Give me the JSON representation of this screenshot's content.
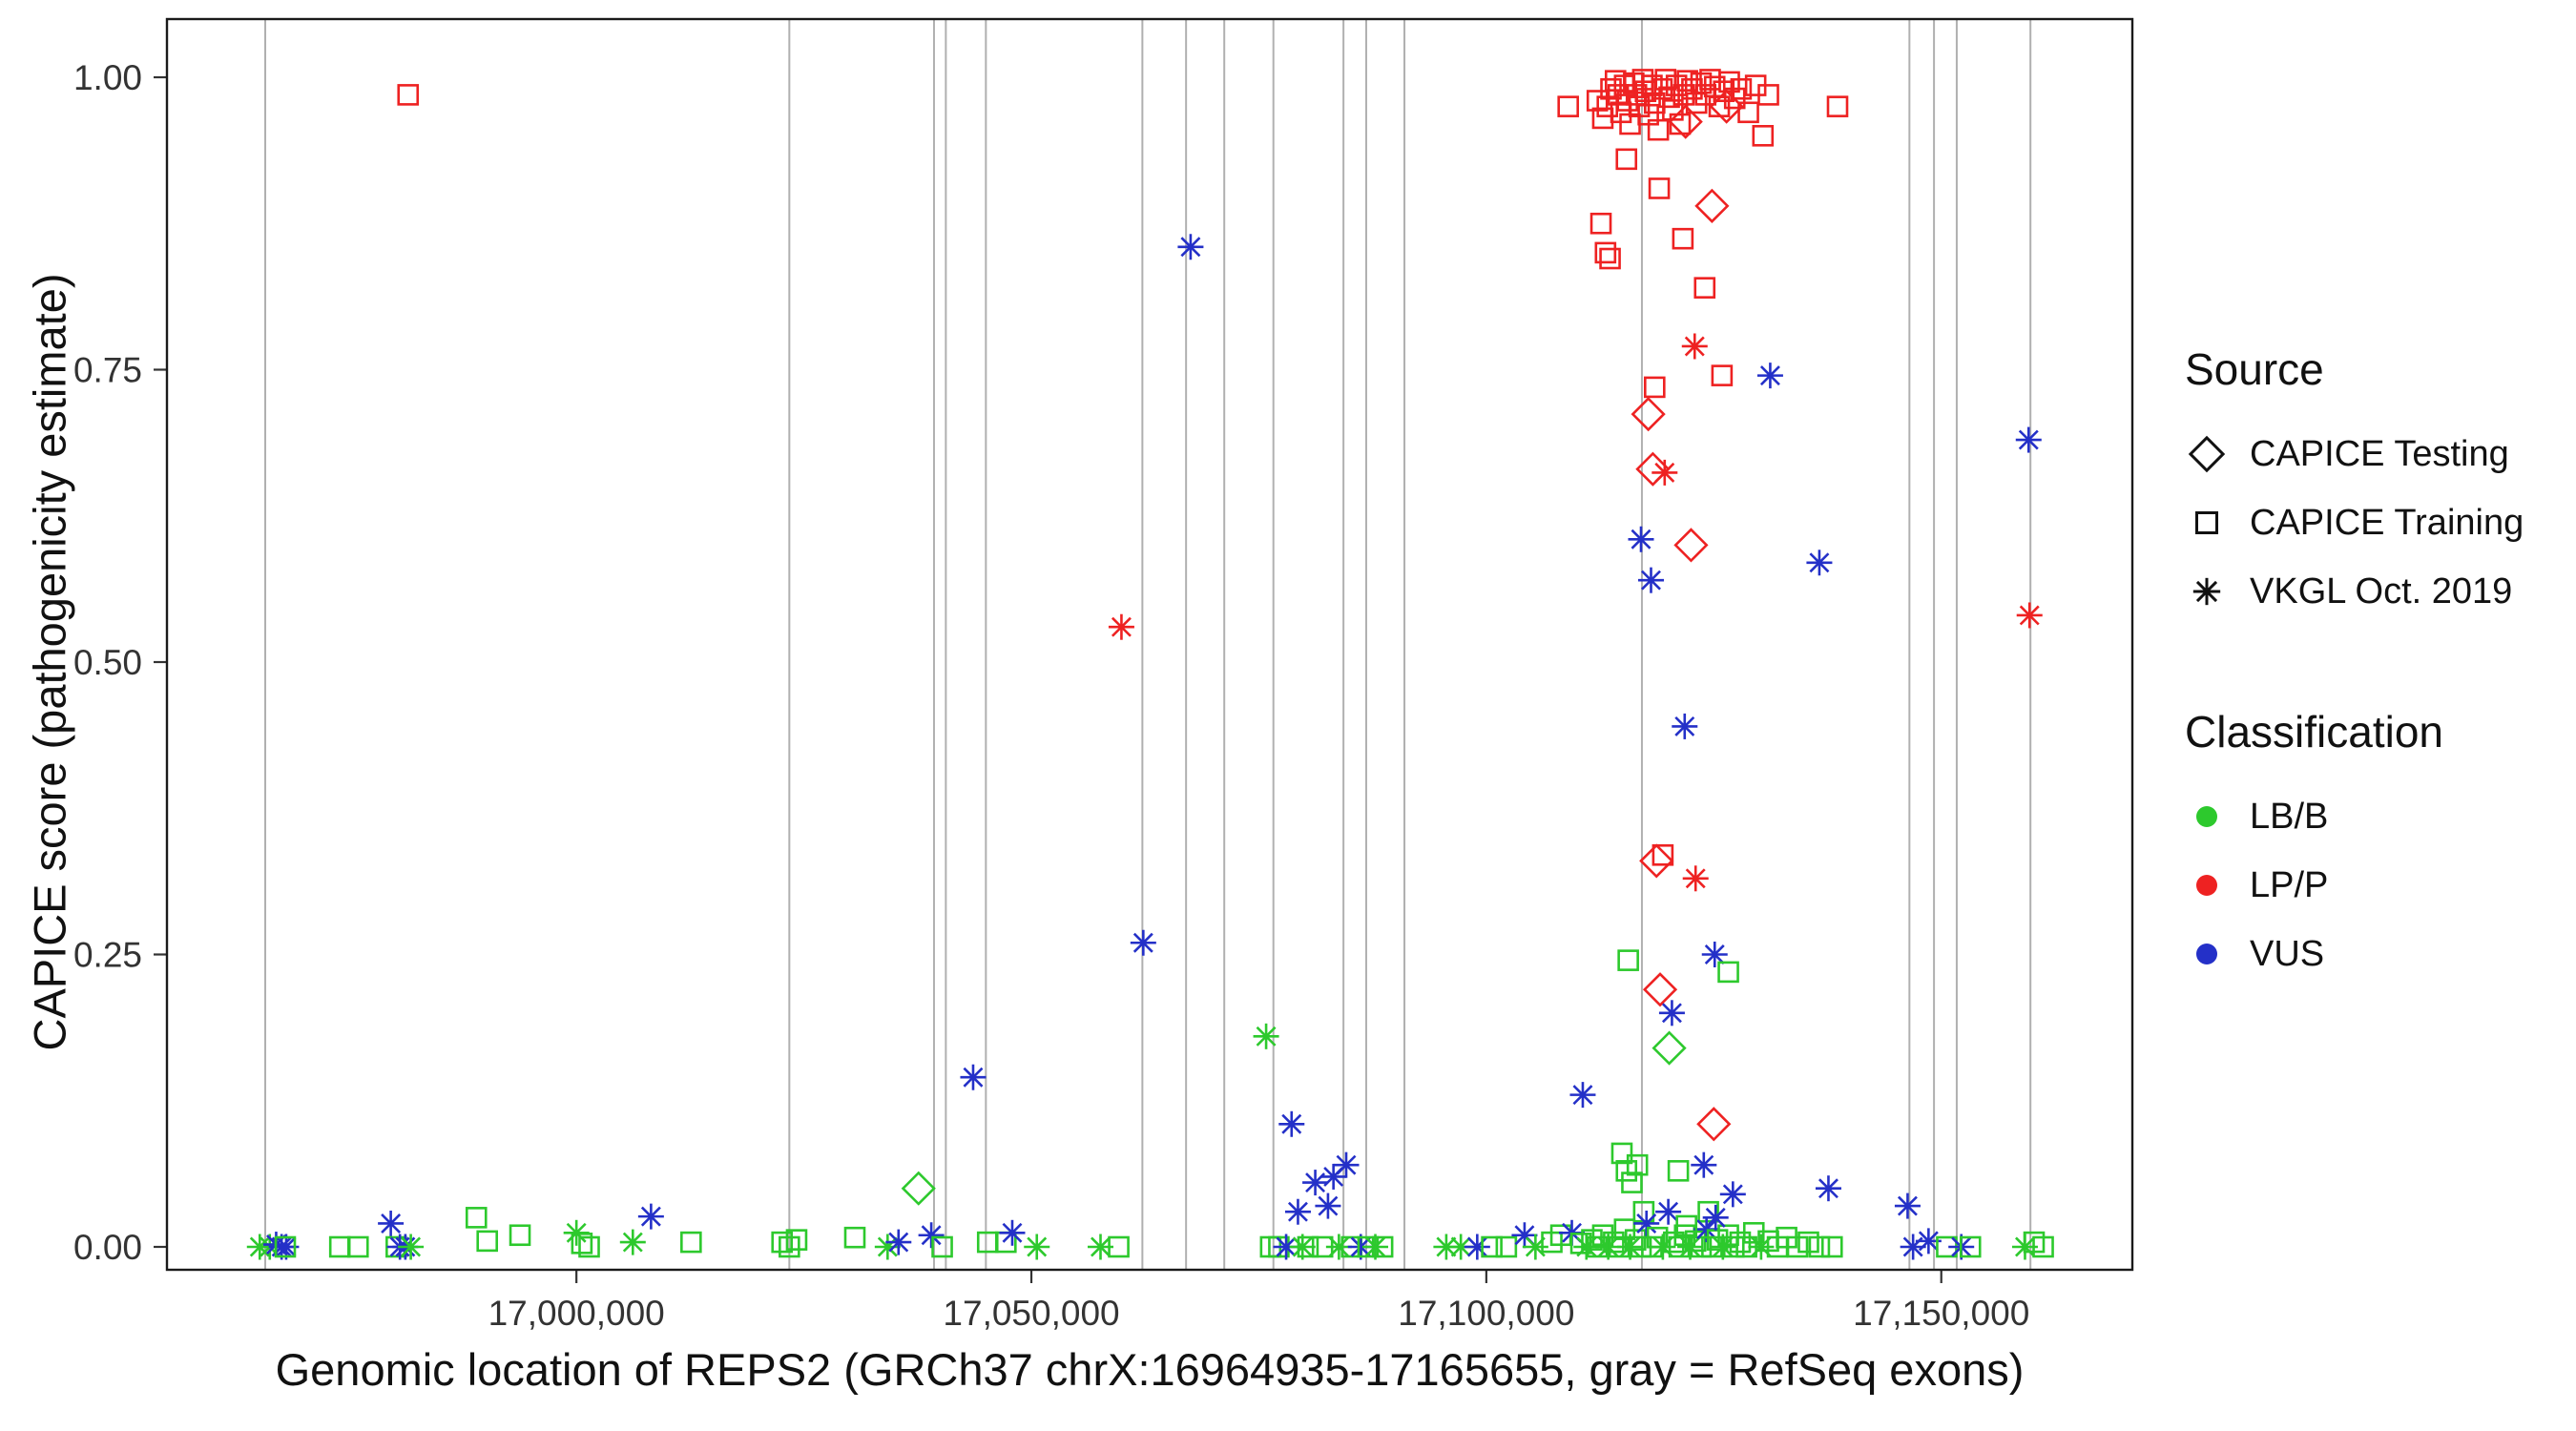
{
  "figure": {
    "x_axis_title": "Genomic location of REPS2 (GRCh37 chrX:16964935-17165655, gray = RefSeq exons)",
    "y_axis_title": "CAPICE score (pathogenicity estimate)"
  },
  "legend": {
    "source_title": "Source",
    "source_items": [
      {
        "label": "CAPICE Testing",
        "shape": "d"
      },
      {
        "label": "CAPICE Training",
        "shape": "s"
      },
      {
        "label": "VKGL Oct. 2019",
        "shape": "a"
      }
    ],
    "classification_title": "Classification",
    "classification_items": [
      {
        "label": "LB/B",
        "code": "B"
      },
      {
        "label": "LP/P",
        "code": "P"
      },
      {
        "label": "VUS",
        "code": "V"
      }
    ]
  },
  "chart_data": {
    "type": "scatter",
    "title": "",
    "xlabel": "Genomic location of REPS2 (GRCh37 chrX:16964935-17165655, gray = RefSeq exons)",
    "ylabel": "CAPICE score (pathogenicity estimate)",
    "xlim": [
      16955000,
      17171000
    ],
    "ylim": [
      0,
      1
    ],
    "grid": "off",
    "legend_position": "right",
    "x_ticks": [
      {
        "value": 17000000,
        "label": "17,000,000"
      },
      {
        "value": 17050000,
        "label": "17,050,000"
      },
      {
        "value": 17100000,
        "label": "17,100,000"
      },
      {
        "value": 17150000,
        "label": "17,150,000"
      }
    ],
    "y_ticks": [
      {
        "value": 0.0,
        "label": "0.00"
      },
      {
        "value": 0.25,
        "label": "0.25"
      },
      {
        "value": 0.5,
        "label": "0.50"
      },
      {
        "value": 0.75,
        "label": "0.75"
      },
      {
        "value": 1.0,
        "label": "1.00"
      }
    ],
    "exon_line_color": "#B0B0B0",
    "exon_lines": [
      16965800,
      17023400,
      17039300,
      17040600,
      17045000,
      17062200,
      17067000,
      17071200,
      17076600,
      17084300,
      17086800,
      17091000,
      17117100,
      17146500,
      17149200,
      17151700,
      17159800
    ],
    "colors": {
      "B": "#2DC92D",
      "P": "#EE2222",
      "V": "#2430C8"
    },
    "codes": {
      "class": {
        "B": "LB/B",
        "P": "LP/P",
        "V": "VUS"
      },
      "shape": {
        "d": "CAPICE Testing (diamond)",
        "s": "CAPICE Training (square)",
        "a": "VKGL Oct. 2019 (asterisk)"
      }
    },
    "points": [
      [
        16965200,
        0.0,
        "B",
        "a"
      ],
      [
        16966300,
        0.0,
        "B",
        "a"
      ],
      [
        16967000,
        0.002,
        "V",
        "a"
      ],
      [
        16967600,
        0.0,
        "V",
        "a"
      ],
      [
        16968100,
        0.0,
        "V",
        "a"
      ],
      [
        16968000,
        0.0,
        "B",
        "s"
      ],
      [
        16974000,
        0.0,
        "B",
        "s"
      ],
      [
        16976000,
        0.0,
        "B",
        "s"
      ],
      [
        16979600,
        0.02,
        "V",
        "a"
      ],
      [
        16980200,
        0.0,
        "B",
        "s"
      ],
      [
        16980600,
        0.0,
        "V",
        "a"
      ],
      [
        16981200,
        0.0,
        "V",
        "a"
      ],
      [
        16981800,
        0.0,
        "B",
        "a"
      ],
      [
        16981500,
        0.985,
        "P",
        "s"
      ],
      [
        16989000,
        0.025,
        "B",
        "s"
      ],
      [
        16990200,
        0.005,
        "B",
        "s"
      ],
      [
        16993800,
        0.01,
        "B",
        "s"
      ],
      [
        17000000,
        0.012,
        "B",
        "a"
      ],
      [
        17000600,
        0.003,
        "B",
        "s"
      ],
      [
        17001400,
        0.0,
        "B",
        "s"
      ],
      [
        17006200,
        0.004,
        "B",
        "a"
      ],
      [
        17008200,
        0.026,
        "V",
        "a"
      ],
      [
        17012600,
        0.004,
        "B",
        "s"
      ],
      [
        17022600,
        0.004,
        "B",
        "s"
      ],
      [
        17023400,
        0.0,
        "B",
        "s"
      ],
      [
        17024200,
        0.006,
        "B",
        "s"
      ],
      [
        17030600,
        0.008,
        "B",
        "s"
      ],
      [
        17034200,
        0.0,
        "B",
        "a"
      ],
      [
        17035400,
        0.004,
        "V",
        "a"
      ],
      [
        17037600,
        0.05,
        "B",
        "d"
      ],
      [
        17039000,
        0.01,
        "V",
        "a"
      ],
      [
        17040200,
        0.0,
        "B",
        "s"
      ],
      [
        17043600,
        0.145,
        "V",
        "a"
      ],
      [
        17045200,
        0.004,
        "B",
        "s"
      ],
      [
        17047200,
        0.004,
        "B",
        "s"
      ],
      [
        17047900,
        0.012,
        "V",
        "a"
      ],
      [
        17050600,
        0.0,
        "B",
        "a"
      ],
      [
        17057600,
        0.0,
        "B",
        "a"
      ],
      [
        17059600,
        0.0,
        "B",
        "s"
      ],
      [
        17059900,
        0.53,
        "P",
        "a"
      ],
      [
        17062300,
        0.26,
        "V",
        "a"
      ],
      [
        17067500,
        0.855,
        "V",
        "a"
      ],
      [
        17075800,
        0.18,
        "B",
        "a"
      ],
      [
        17076300,
        0.0,
        "B",
        "s"
      ],
      [
        17077200,
        0.0,
        "B",
        "s"
      ],
      [
        17078000,
        0.0,
        "V",
        "a"
      ],
      [
        17078600,
        0.105,
        "V",
        "a"
      ],
      [
        17079300,
        0.03,
        "V",
        "a"
      ],
      [
        17079800,
        0.0,
        "B",
        "a"
      ],
      [
        17080400,
        0.0,
        "B",
        "s"
      ],
      [
        17081200,
        0.055,
        "V",
        "a"
      ],
      [
        17082000,
        0.0,
        "B",
        "s"
      ],
      [
        17082600,
        0.035,
        "V",
        "a"
      ],
      [
        17083200,
        0.06,
        "V",
        "a"
      ],
      [
        17083800,
        0.0,
        "B",
        "a"
      ],
      [
        17084600,
        0.07,
        "V",
        "a"
      ],
      [
        17085200,
        0.0,
        "B",
        "s"
      ],
      [
        17086200,
        0.0,
        "V",
        "a"
      ],
      [
        17087000,
        0.0,
        "B",
        "s"
      ],
      [
        17087800,
        0.0,
        "B",
        "a"
      ],
      [
        17088600,
        0.0,
        "B",
        "s"
      ],
      [
        17095600,
        0.0,
        "B",
        "a"
      ],
      [
        17097200,
        0.0,
        "B",
        "a"
      ],
      [
        17099000,
        0.0,
        "V",
        "a"
      ],
      [
        17100600,
        0.0,
        "B",
        "s"
      ],
      [
        17102200,
        0.0,
        "B",
        "s"
      ],
      [
        17104200,
        0.01,
        "V",
        "a"
      ],
      [
        17105400,
        0.0,
        "B",
        "a"
      ],
      [
        17107200,
        0.004,
        "B",
        "s"
      ],
      [
        17108200,
        0.01,
        "B",
        "s"
      ],
      [
        17109400,
        0.012,
        "V",
        "a"
      ],
      [
        17110600,
        0.13,
        "V",
        "a"
      ],
      [
        17109000,
        0.975,
        "P",
        "s"
      ],
      [
        17112200,
        0.98,
        "P",
        "s"
      ],
      [
        17112800,
        0.965,
        "P",
        "s"
      ],
      [
        17113300,
        0.975,
        "P",
        "s"
      ],
      [
        17113700,
        0.99,
        "P",
        "s"
      ],
      [
        17114200,
        0.997,
        "P",
        "s"
      ],
      [
        17114500,
        0.985,
        "P",
        "s"
      ],
      [
        17114800,
        0.97,
        "P",
        "s"
      ],
      [
        17115200,
        0.993,
        "P",
        "s"
      ],
      [
        17115500,
        0.98,
        "P",
        "s"
      ],
      [
        17115800,
        0.96,
        "P",
        "s"
      ],
      [
        17116200,
        0.995,
        "P",
        "s"
      ],
      [
        17116500,
        0.985,
        "P",
        "s"
      ],
      [
        17116800,
        0.975,
        "P",
        "s"
      ],
      [
        17117200,
        0.998,
        "P",
        "s"
      ],
      [
        17117500,
        0.988,
        "P",
        "s"
      ],
      [
        17117800,
        0.968,
        "P",
        "s"
      ],
      [
        17118200,
        0.993,
        "P",
        "s"
      ],
      [
        17118500,
        0.978,
        "P",
        "s"
      ],
      [
        17118900,
        0.955,
        "P",
        "s"
      ],
      [
        17119300,
        0.99,
        "P",
        "s"
      ],
      [
        17119700,
        0.998,
        "P",
        "s"
      ],
      [
        17120100,
        0.983,
        "P",
        "s"
      ],
      [
        17120500,
        0.972,
        "P",
        "s"
      ],
      [
        17120900,
        0.993,
        "P",
        "s"
      ],
      [
        17121300,
        0.96,
        "P",
        "s"
      ],
      [
        17121700,
        0.985,
        "P",
        "s"
      ],
      [
        17122100,
        0.997,
        "P",
        "s"
      ],
      [
        17122600,
        0.99,
        "P",
        "s"
      ],
      [
        17123100,
        0.978,
        "P",
        "s"
      ],
      [
        17123600,
        0.995,
        "P",
        "s"
      ],
      [
        17124100,
        0.985,
        "P",
        "s"
      ],
      [
        17124600,
        0.998,
        "P",
        "s"
      ],
      [
        17125100,
        0.992,
        "P",
        "s"
      ],
      [
        17125600,
        0.975,
        "P",
        "s"
      ],
      [
        17126100,
        0.988,
        "P",
        "s"
      ],
      [
        17126700,
        0.996,
        "P",
        "s"
      ],
      [
        17127300,
        0.982,
        "P",
        "s"
      ],
      [
        17128000,
        0.99,
        "P",
        "s"
      ],
      [
        17128800,
        0.97,
        "P",
        "s"
      ],
      [
        17129600,
        0.993,
        "P",
        "s"
      ],
      [
        17130400,
        0.95,
        "P",
        "s"
      ],
      [
        17131000,
        0.985,
        "P",
        "s"
      ],
      [
        17121900,
        0.962,
        "P",
        "d"
      ],
      [
        17126400,
        0.975,
        "P",
        "d"
      ],
      [
        17112600,
        0.875,
        "P",
        "s"
      ],
      [
        17113100,
        0.85,
        "P",
        "s"
      ],
      [
        17113600,
        0.845,
        "P",
        "s"
      ],
      [
        17119000,
        0.905,
        "P",
        "s"
      ],
      [
        17121600,
        0.862,
        "P",
        "s"
      ],
      [
        17115400,
        0.93,
        "P",
        "s"
      ],
      [
        17124800,
        0.89,
        "P",
        "d"
      ],
      [
        17124000,
        0.82,
        "P",
        "s"
      ],
      [
        17122900,
        0.77,
        "P",
        "a"
      ],
      [
        17118500,
        0.735,
        "P",
        "s"
      ],
      [
        17125900,
        0.745,
        "P",
        "s"
      ],
      [
        17117800,
        0.712,
        "P",
        "d"
      ],
      [
        17118300,
        0.665,
        "P",
        "d"
      ],
      [
        17119600,
        0.662,
        "P",
        "a"
      ],
      [
        17122500,
        0.6,
        "P",
        "d"
      ],
      [
        17118700,
        0.33,
        "P",
        "d"
      ],
      [
        17119400,
        0.335,
        "P",
        "s"
      ],
      [
        17123000,
        0.315,
        "P",
        "a"
      ],
      [
        17119100,
        0.22,
        "P",
        "d"
      ],
      [
        17125000,
        0.105,
        "P",
        "d"
      ],
      [
        17117000,
        0.605,
        "V",
        "a"
      ],
      [
        17118100,
        0.57,
        "V",
        "a"
      ],
      [
        17121800,
        0.445,
        "V",
        "a"
      ],
      [
        17120400,
        0.2,
        "V",
        "a"
      ],
      [
        17125100,
        0.25,
        "V",
        "a"
      ],
      [
        17123900,
        0.07,
        "V",
        "a"
      ],
      [
        17127100,
        0.045,
        "V",
        "a"
      ],
      [
        17131200,
        0.745,
        "V",
        "a"
      ],
      [
        17136600,
        0.585,
        "V",
        "a"
      ],
      [
        17137600,
        0.05,
        "V",
        "a"
      ],
      [
        17115600,
        0.245,
        "B",
        "s"
      ],
      [
        17126600,
        0.235,
        "B",
        "s"
      ],
      [
        17120100,
        0.17,
        "B",
        "d"
      ],
      [
        17114900,
        0.08,
        "B",
        "s"
      ],
      [
        17115400,
        0.065,
        "B",
        "s"
      ],
      [
        17116000,
        0.055,
        "B",
        "s"
      ],
      [
        17116600,
        0.07,
        "B",
        "s"
      ],
      [
        17117300,
        0.03,
        "B",
        "s"
      ],
      [
        17121100,
        0.065,
        "B",
        "s"
      ],
      [
        17124400,
        0.03,
        "B",
        "s"
      ],
      [
        17110400,
        0.003,
        "B",
        "s"
      ],
      [
        17111000,
        0.0,
        "B",
        "a"
      ],
      [
        17111600,
        0.006,
        "B",
        "s"
      ],
      [
        17112200,
        0.0,
        "B",
        "s"
      ],
      [
        17112800,
        0.01,
        "B",
        "s"
      ],
      [
        17113400,
        0.0,
        "B",
        "a"
      ],
      [
        17114000,
        0.004,
        "B",
        "s"
      ],
      [
        17114600,
        0.0,
        "B",
        "s"
      ],
      [
        17115200,
        0.015,
        "B",
        "s"
      ],
      [
        17115800,
        0.0,
        "B",
        "a"
      ],
      [
        17116400,
        0.006,
        "B",
        "s"
      ],
      [
        17117000,
        0.0,
        "B",
        "s"
      ],
      [
        17117600,
        0.02,
        "V",
        "a"
      ],
      [
        17118200,
        0.0,
        "B",
        "s"
      ],
      [
        17118800,
        0.008,
        "B",
        "s"
      ],
      [
        17119400,
        0.0,
        "B",
        "a"
      ],
      [
        17120000,
        0.03,
        "V",
        "a"
      ],
      [
        17120600,
        0.004,
        "B",
        "s"
      ],
      [
        17121200,
        0.0,
        "B",
        "s"
      ],
      [
        17121800,
        0.01,
        "B",
        "s"
      ],
      [
        17122400,
        0.0,
        "B",
        "a"
      ],
      [
        17123000,
        0.005,
        "B",
        "s"
      ],
      [
        17123600,
        0.0,
        "B",
        "s"
      ],
      [
        17124200,
        0.015,
        "V",
        "a"
      ],
      [
        17124800,
        0.0,
        "B",
        "s"
      ],
      [
        17125400,
        0.006,
        "B",
        "s"
      ],
      [
        17126000,
        0.0,
        "B",
        "a"
      ],
      [
        17126600,
        0.01,
        "B",
        "s"
      ],
      [
        17127200,
        0.0,
        "B",
        "s"
      ],
      [
        17127900,
        0.004,
        "B",
        "s"
      ],
      [
        17128600,
        0.0,
        "B",
        "s"
      ],
      [
        17129400,
        0.012,
        "B",
        "s"
      ],
      [
        17130200,
        0.0,
        "B",
        "a"
      ],
      [
        17131000,
        0.005,
        "B",
        "s"
      ],
      [
        17132000,
        0.0,
        "B",
        "s"
      ],
      [
        17133000,
        0.008,
        "B",
        "s"
      ],
      [
        17134200,
        0.0,
        "B",
        "s"
      ],
      [
        17135400,
        0.004,
        "B",
        "s"
      ],
      [
        17136600,
        0.0,
        "B",
        "s"
      ],
      [
        17138000,
        0.0,
        "B",
        "s"
      ],
      [
        17125200,
        0.025,
        "V",
        "a"
      ],
      [
        17122000,
        0.018,
        "B",
        "s"
      ],
      [
        17138600,
        0.975,
        "P",
        "s"
      ],
      [
        17146300,
        0.035,
        "V",
        "a"
      ],
      [
        17146900,
        0.0,
        "V",
        "a"
      ],
      [
        17148600,
        0.005,
        "V",
        "a"
      ],
      [
        17150600,
        0.0,
        "B",
        "s"
      ],
      [
        17152200,
        0.0,
        "V",
        "a"
      ],
      [
        17153200,
        0.0,
        "B",
        "s"
      ],
      [
        17159600,
        0.69,
        "V",
        "a"
      ],
      [
        17159700,
        0.54,
        "P",
        "a"
      ],
      [
        17159200,
        0.0,
        "B",
        "a"
      ],
      [
        17160200,
        0.004,
        "B",
        "s"
      ],
      [
        17161200,
        0.0,
        "B",
        "s"
      ]
    ]
  }
}
